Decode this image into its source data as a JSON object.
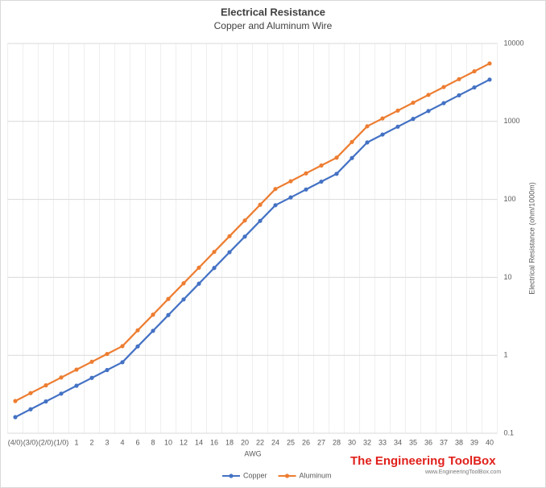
{
  "chart_data": {
    "type": "line",
    "title": "Electrical Resistance",
    "subtitle": "Copper  and Aluminum  Wire",
    "x_label": "AWG",
    "y_label": "Electrical Resistance (ohm/1000m)",
    "categories": [
      "(4/0)",
      "(3/0)",
      "(2/0)",
      "(1/0)",
      "1",
      "2",
      "3",
      "4",
      "6",
      "8",
      "10",
      "12",
      "14",
      "16",
      "18",
      "20",
      "22",
      "24",
      "25",
      "26",
      "27",
      "28",
      "30",
      "32",
      "33",
      "34",
      "35",
      "36",
      "37",
      "38",
      "39",
      "40"
    ],
    "series": [
      {
        "name": "Copper",
        "color": "#4472c4",
        "values": [
          0.161,
          0.203,
          0.256,
          0.322,
          0.407,
          0.513,
          0.647,
          0.815,
          1.3,
          2.06,
          3.28,
          5.21,
          8.29,
          13.2,
          21,
          33.3,
          53,
          84.2,
          106,
          134,
          169,
          213,
          339,
          538,
          679,
          856,
          1079,
          1361,
          1716,
          2164,
          2729,
          3441
        ]
      },
      {
        "name": "Aluminum",
        "color": "#ed7d31",
        "values": [
          0.259,
          0.327,
          0.412,
          0.519,
          0.655,
          0.825,
          1.04,
          1.31,
          2.09,
          3.32,
          5.28,
          8.39,
          13.3,
          21.2,
          33.7,
          53.6,
          85.3,
          136,
          171,
          216,
          272,
          343,
          545,
          867,
          1093,
          1378,
          1737,
          2191,
          2763,
          3484,
          4394,
          5540
        ]
      }
    ],
    "ylim": [
      0.1,
      10000
    ],
    "yticks": [
      0.1,
      1,
      10,
      100,
      1000,
      10000
    ],
    "log_y": true,
    "y_axis_side": "right",
    "grid": true,
    "legend": "bottom",
    "watermark": "The Engineering ToolBox",
    "watermark_url": "www.EngineeringToolBox.com"
  }
}
